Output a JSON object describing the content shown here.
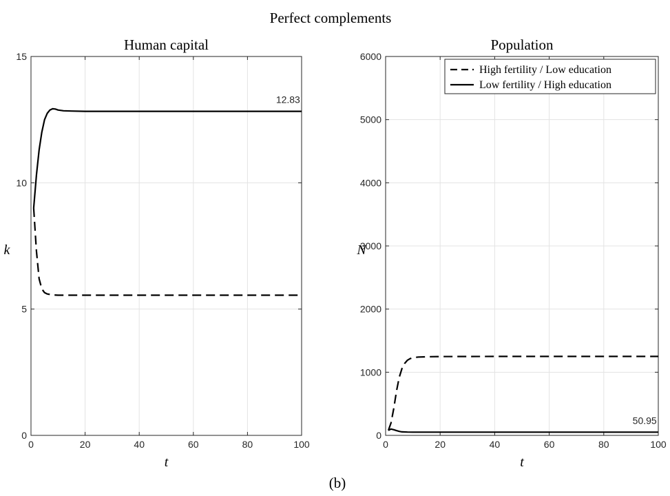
{
  "figure": {
    "title": "Perfect complements",
    "caption": "(b)"
  },
  "chart_data": [
    {
      "type": "line",
      "title": "Human capital",
      "xlabel": "t",
      "ylabel": "k",
      "xlim": [
        0,
        100
      ],
      "ylim": [
        0,
        15
      ],
      "xticks": [
        0,
        20,
        40,
        60,
        80,
        100
      ],
      "yticks": [
        0,
        5,
        10,
        15
      ],
      "grid": true,
      "series": [
        {
          "name": "High fertility / Low education",
          "style": "dashed",
          "color": "#000000",
          "x": [
            1,
            2,
            3,
            4,
            5,
            6,
            8,
            10,
            15,
            20,
            40,
            60,
            80,
            100
          ],
          "y": [
            9.0,
            7.3,
            6.2,
            5.8,
            5.65,
            5.6,
            5.56,
            5.55,
            5.55,
            5.55,
            5.55,
            5.55,
            5.55,
            5.55
          ]
        },
        {
          "name": "Low fertility / High education",
          "style": "solid",
          "color": "#000000",
          "x": [
            1,
            2,
            3,
            4,
            5,
            6,
            7,
            8,
            9,
            10,
            12,
            15,
            20,
            40,
            60,
            80,
            100
          ],
          "y": [
            9.0,
            10.3,
            11.3,
            12.0,
            12.5,
            12.75,
            12.88,
            12.93,
            12.92,
            12.88,
            12.85,
            12.84,
            12.83,
            12.83,
            12.83,
            12.83,
            12.83
          ]
        }
      ],
      "annotations": [
        {
          "text": "12.83",
          "x": 95,
          "y": 12.83
        }
      ]
    },
    {
      "type": "line",
      "title": "Population",
      "xlabel": "t",
      "ylabel": "N",
      "xlim": [
        0,
        100
      ],
      "ylim": [
        0,
        6000
      ],
      "xticks": [
        0,
        20,
        40,
        60,
        80,
        100
      ],
      "yticks": [
        0,
        1000,
        2000,
        3000,
        4000,
        5000,
        6000
      ],
      "grid": true,
      "legend": "top-right",
      "series": [
        {
          "name": "High fertility / Low education",
          "style": "dashed",
          "color": "#000000",
          "x": [
            1,
            2,
            3,
            4,
            5,
            6,
            7,
            8,
            9,
            10,
            12,
            15,
            20,
            40,
            60,
            80,
            100
          ],
          "y": [
            80,
            200,
            430,
            700,
            920,
            1060,
            1140,
            1190,
            1215,
            1230,
            1240,
            1245,
            1248,
            1250,
            1250,
            1250,
            1250
          ]
        },
        {
          "name": "Low fertility / High education",
          "style": "solid",
          "color": "#000000",
          "x": [
            1,
            2,
            3,
            4,
            5,
            6,
            8,
            10,
            15,
            20,
            40,
            60,
            80,
            100
          ],
          "y": [
            80,
            100,
            90,
            75,
            63,
            56,
            52,
            51,
            51,
            51,
            51,
            51,
            51,
            51
          ]
        }
      ],
      "annotations": [
        {
          "text": "50.95",
          "x": 95,
          "y": 50.95
        }
      ]
    }
  ]
}
